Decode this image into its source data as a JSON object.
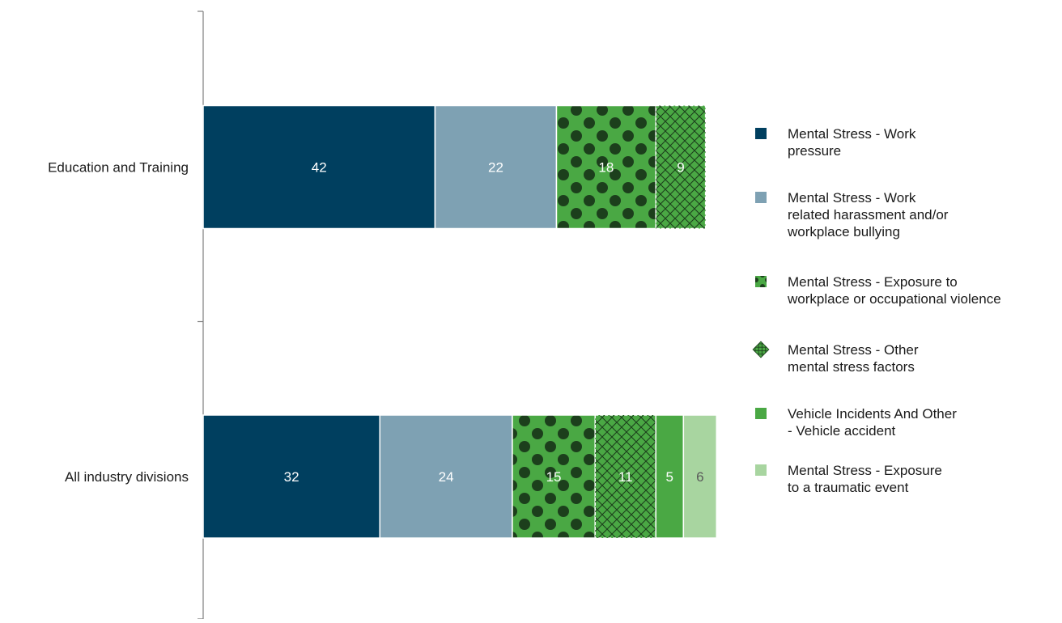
{
  "chart_data": {
    "type": "bar",
    "orientation": "horizontal",
    "stacked": true,
    "categories": [
      "Education and Training",
      "All industry divisions"
    ],
    "series": [
      {
        "name": "Mental Stress - Work pressure",
        "values": [
          42,
          32
        ],
        "color": "#003f5f",
        "pattern": "solid",
        "label_color": "#ffffff"
      },
      {
        "name": "Mental Stress - Work related harassment and/or workplace bullying",
        "values": [
          22,
          24
        ],
        "color": "#7ea1b3",
        "pattern": "solid",
        "label_color": "#ffffff"
      },
      {
        "name": "Mental Stress - Exposure to workplace or occupational violence",
        "values": [
          18,
          15
        ],
        "color": "#4aa844",
        "pattern": "dots",
        "pattern_color": "#1c3f1c",
        "label_color": "#ffffff"
      },
      {
        "name": "Mental Stress - Other mental stress factors",
        "values": [
          9,
          11
        ],
        "color": "#4aa844",
        "pattern": "crosshatch",
        "pattern_color": "#1c3f1c",
        "label_color": "#ffffff"
      },
      {
        "name": "Vehicle Incidents And Other - Vehicle accident",
        "values": [
          null,
          5
        ],
        "color": "#4aa844",
        "pattern": "solid",
        "label_color": "#ffffff"
      },
      {
        "name": "Mental Stress - Exposure to a traumatic event",
        "values": [
          null,
          6
        ],
        "color": "#a8d5a0",
        "pattern": "solid",
        "label_color": "#5a5a5a"
      }
    ],
    "legend": {
      "position": "right",
      "entries": [
        {
          "lines": [
            "Mental Stress - Work",
            "pressure"
          ]
        },
        {
          "lines": [
            "Mental Stress - Work",
            "related harassment and/or",
            "workplace bullying"
          ]
        },
        {
          "lines": [
            "Mental Stress - Exposure to",
            "workplace or occupational violence"
          ]
        },
        {
          "lines": [
            "Mental Stress - Other",
            "mental stress factors"
          ]
        },
        {
          "lines": [
            "Vehicle Incidents And Other",
            "- Vehicle accident"
          ]
        },
        {
          "lines": [
            "Mental Stress - Exposure",
            "to a traumatic event"
          ]
        }
      ]
    },
    "xaxis": {
      "visible": false,
      "range": [
        0,
        100
      ]
    },
    "grid": false
  }
}
